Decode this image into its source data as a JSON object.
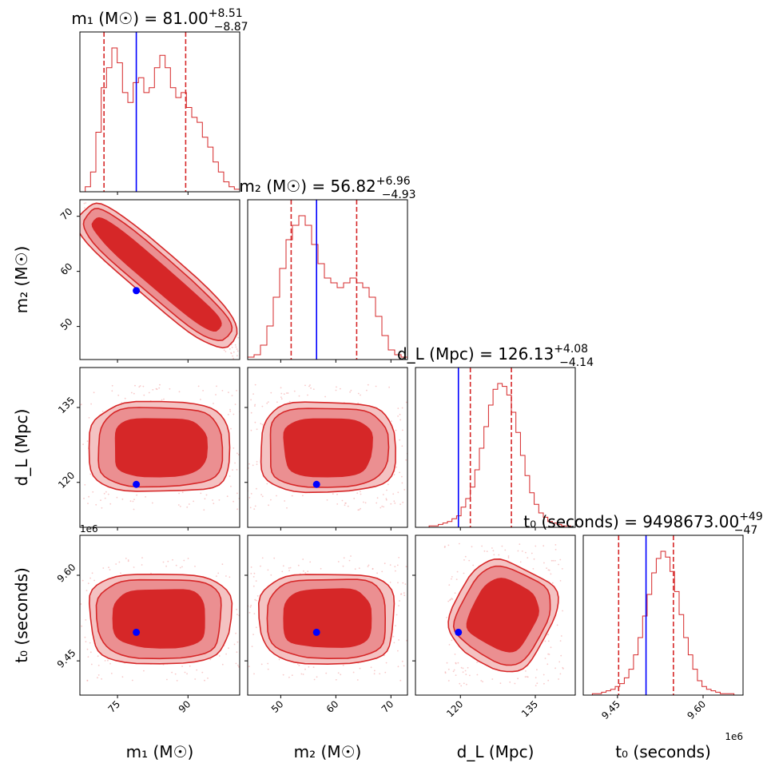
{
  "colors": {
    "histogram": "#d62728",
    "contour_outer": "#f4c2c2",
    "contour_mid": "#eb8f91",
    "contour_inner": "#d62728",
    "truth": "#0000ff",
    "quantile": "#d62728"
  },
  "chart_data": {
    "type": "corner",
    "parameters": [
      {
        "label": "m₁ (M☉)",
        "title": "m₁ (M☉) = 81.00",
        "sup": "+8.51",
        "sub": "−8.87",
        "range": [
          67,
          101
        ],
        "ticks": [
          75,
          90
        ],
        "tick_labels": [
          "75",
          "90"
        ],
        "truth": 79,
        "median": 81.0,
        "q_low": 72.13,
        "q_high": 89.51
      },
      {
        "label": "m₂ (M☉)",
        "title": "m₂ (M☉) = 56.82",
        "sup": "+6.96",
        "sub": "−4.93",
        "range": [
          44,
          73
        ],
        "ticks": [
          50,
          60,
          70
        ],
        "tick_labels": [
          "50",
          "60",
          "70"
        ],
        "truth": 56.5,
        "median": 56.82,
        "q_low": 51.89,
        "q_high": 63.78
      },
      {
        "label": "d_L (Mpc)",
        "title": "d_L (Mpc) = 126.13",
        "sup": "+4.08",
        "sub": "−4.14",
        "range": [
          111,
          143
        ],
        "ticks": [
          120,
          135
        ],
        "tick_labels": [
          "120",
          "135"
        ],
        "truth": 119.6,
        "median": 126.13,
        "q_low": 121.99,
        "q_high": 130.21
      },
      {
        "label": "t₀ (seconds)",
        "title": "t₀ (seconds) = 9498673.00",
        "sup": "+49",
        "sub": "−47",
        "range": [
          9.39,
          9.67
        ],
        "ticks": [
          9.45,
          9.6
        ],
        "tick_labels": [
          "9.45",
          "9.60"
        ],
        "offset": "1e6",
        "truth": 9.5,
        "median": 9.4987,
        "q_low": 9.452,
        "q_high": 9.548
      }
    ],
    "histograms": [
      [
        0,
        2,
        8,
        24,
        42,
        50,
        58,
        52,
        40,
        36,
        44,
        46,
        40,
        42,
        50,
        55,
        50,
        42,
        38,
        40,
        34,
        30,
        28,
        22,
        18,
        12,
        8,
        4,
        2,
        1
      ],
      [
        1,
        2,
        6,
        14,
        26,
        38,
        50,
        56,
        60,
        56,
        48,
        40,
        34,
        32,
        30,
        32,
        34,
        32,
        30,
        26,
        18,
        10,
        4,
        2,
        1
      ],
      [
        0,
        0,
        0,
        1,
        1,
        2,
        3,
        4,
        6,
        8,
        14,
        20,
        28,
        40,
        55,
        70,
        85,
        96,
        100,
        98,
        92,
        80,
        66,
        50,
        36,
        24,
        16,
        10,
        7,
        4,
        3,
        2,
        1,
        1,
        0
      ],
      [
        0,
        0,
        1,
        1,
        2,
        3,
        4,
        6,
        8,
        12,
        18,
        28,
        40,
        55,
        70,
        85,
        95,
        100,
        96,
        86,
        72,
        56,
        40,
        28,
        18,
        10,
        6,
        4,
        3,
        2,
        1,
        1,
        1,
        0,
        0
      ]
    ],
    "levels": [
      "outer",
      "mid",
      "inner"
    ]
  }
}
